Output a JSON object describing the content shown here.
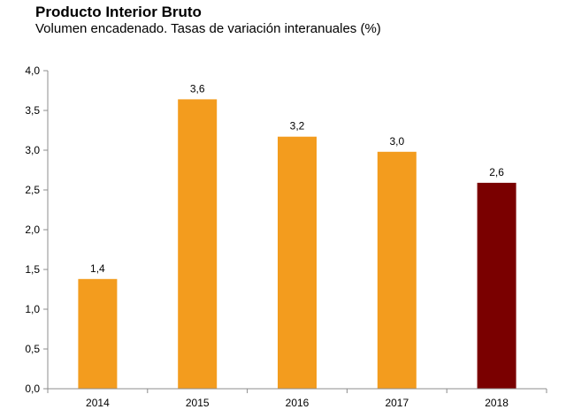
{
  "chart_data": {
    "type": "bar",
    "title": "Producto Interior Bruto",
    "subtitle": "Volumen encadenado. Tasas de variación interanuales (%)",
    "xlabel": "",
    "ylabel": "",
    "categories": [
      "2014",
      "2015",
      "2016",
      "2017",
      "2018"
    ],
    "values": [
      1.38,
      3.64,
      3.17,
      2.98,
      2.59
    ],
    "data_labels": [
      "1,4",
      "3,6",
      "3,2",
      "3,0",
      "2,6"
    ],
    "colors": [
      "#F39C1E",
      "#F39C1E",
      "#F39C1E",
      "#F39C1E",
      "#7A0000"
    ],
    "ylim": [
      0,
      4
    ],
    "yticks": [
      0,
      0.5,
      1,
      1.5,
      2,
      2.5,
      3,
      3.5,
      4
    ],
    "ytick_labels": [
      "0,0",
      "0,5",
      "1,0",
      "1,5",
      "2,0",
      "2,5",
      "3,0",
      "3,5",
      "4,0"
    ],
    "grid": false,
    "legend": "none"
  }
}
